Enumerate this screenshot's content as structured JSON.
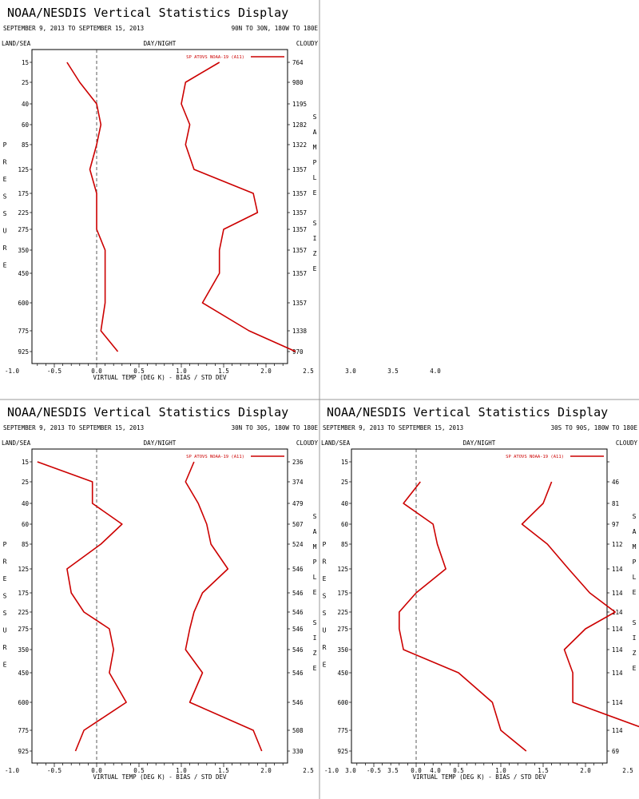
{
  "panels": [
    {
      "title": "NOAA/NESDIS Vertical Statistics Display",
      "date_range": "SEPTEMBER 9, 2013 TO SEPTEMBER 15, 2013",
      "region": "90N TO 30N, 180W TO 180E",
      "header_left": "LAND/SEA",
      "header_center": "DAY/NIGHT",
      "header_right": "CLOUDY"
    },
    {
      "title": "NOAA/NESDIS Vertical Statistics Display",
      "date_range": "SEPTEMBER 9, 2013 TO SEPTEMBER 15, 2013",
      "region": "30N TO 30S, 180W TO 180E",
      "header_left": "LAND/SEA",
      "header_center": "DAY/NIGHT",
      "header_right": "CLOUDY"
    },
    {
      "title": "NOAA/NESDIS Vertical Statistics Display",
      "date_range": "SEPTEMBER 9, 2013 TO SEPTEMBER 15, 2013",
      "region": "30S TO 90S, 180W TO 180E",
      "header_left": "LAND/SEA",
      "header_center": "DAY/NIGHT",
      "header_right": "CLOUDY"
    }
  ],
  "chart_data": [
    {
      "type": "line",
      "xlabel": "VIRTUAL TEMP (DEG K) - BIAS / STD DEV",
      "ylabel": "PRESSURE",
      "y2label": "SAMPLE SIZE",
      "xlim": [
        -1.5,
        4.5
      ],
      "x_ticks": [
        "-1.0",
        "-0.5",
        "0.0",
        "0.5",
        "1.0",
        "1.5",
        "2.0",
        "2.5",
        "3.0",
        "3.5",
        "4.0"
      ],
      "pressure_levels": [
        "15",
        "25",
        "40",
        "60",
        "85",
        "125",
        "175",
        "225",
        "275",
        "350",
        "450",
        "600",
        "775",
        "925"
      ],
      "sample_size": [
        "764",
        "980",
        "1195",
        "1282",
        "1322",
        "1357",
        "1357",
        "1357",
        "1357",
        "1357",
        "1357",
        "1357",
        "1338",
        "970"
      ],
      "series": [
        {
          "name": "SP ATOVS NOAA-19 (A11)",
          "role": "bias",
          "values": [
            -0.35,
            -0.2,
            0.0,
            0.05,
            0.0,
            -0.08,
            0.0,
            0.0,
            0.0,
            0.1,
            0.1,
            0.1,
            0.05,
            0.25
          ]
        },
        {
          "role": "stdev",
          "values": [
            1.45,
            1.05,
            1.0,
            1.1,
            1.05,
            1.15,
            1.85,
            1.9,
            1.5,
            1.45,
            1.45,
            1.25,
            1.8,
            2.35
          ]
        }
      ],
      "legend_position": "top-right",
      "color": "#cc0000"
    },
    {
      "type": "line",
      "xlabel": "VIRTUAL TEMP (DEG K) - BIAS / STD DEV",
      "ylabel": "PRESSURE",
      "y2label": "SAMPLE SIZE",
      "xlim": [
        -1.5,
        4.5
      ],
      "x_ticks": [
        "-1.0",
        "-0.5",
        "0.0",
        "0.5",
        "1.0",
        "1.5",
        "2.0",
        "2.5",
        "3.0",
        "3.5",
        "4.0"
      ],
      "pressure_levels": [
        "15",
        "25",
        "40",
        "60",
        "85",
        "125",
        "175",
        "225",
        "275",
        "350",
        "450",
        "600",
        "775",
        "925"
      ],
      "sample_size": [
        "236",
        "374",
        "479",
        "507",
        "524",
        "546",
        "546",
        "546",
        "546",
        "546",
        "546",
        "546",
        "508",
        "330"
      ],
      "series": [
        {
          "name": "SP ATOVS NOAA-19 (A11)",
          "role": "bias",
          "values": [
            -0.7,
            -0.05,
            -0.05,
            0.3,
            0.05,
            -0.35,
            -0.3,
            -0.15,
            0.15,
            0.2,
            0.15,
            0.35,
            -0.15,
            -0.25
          ]
        },
        {
          "role": "stdev",
          "values": [
            1.15,
            1.05,
            1.2,
            1.3,
            1.35,
            1.55,
            1.25,
            1.15,
            1.1,
            1.05,
            1.25,
            1.1,
            1.85,
            1.95
          ]
        }
      ],
      "legend_position": "top-right",
      "color": "#cc0000"
    },
    {
      "type": "line",
      "xlabel": "VIRTUAL TEMP (DEG K) - BIAS / STD DEV",
      "ylabel": "PRESSURE",
      "y2label": "SAMPLE SIZE",
      "xlim": [
        -1.5,
        4.5
      ],
      "x_ticks": [
        "-1.0",
        "-0.5",
        "0.0",
        "0.5",
        "1.0",
        "1.5",
        "2.0",
        "2.5",
        "3.0",
        "3.5",
        "4.0"
      ],
      "pressure_levels": [
        "15",
        "25",
        "40",
        "60",
        "85",
        "125",
        "175",
        "225",
        "275",
        "350",
        "450",
        "600",
        "775",
        "925"
      ],
      "sample_size": [
        "",
        "46",
        "81",
        "97",
        "112",
        "114",
        "114",
        "114",
        "114",
        "114",
        "114",
        "114",
        "114",
        "69"
      ],
      "series": [
        {
          "name": "SP ATOVS NOAA-19 (A11)",
          "role": "bias",
          "values": [
            null,
            0.05,
            -0.15,
            0.2,
            0.25,
            0.35,
            0.0,
            -0.2,
            -0.2,
            -0.15,
            0.5,
            0.9,
            1.0,
            1.3
          ]
        },
        {
          "role": "stdev",
          "values": [
            null,
            1.6,
            1.5,
            1.25,
            1.55,
            1.8,
            2.05,
            2.35,
            2.0,
            1.75,
            1.85,
            1.85,
            2.75,
            2.85
          ]
        }
      ],
      "legend_position": "top-right",
      "color": "#cc0000"
    }
  ]
}
